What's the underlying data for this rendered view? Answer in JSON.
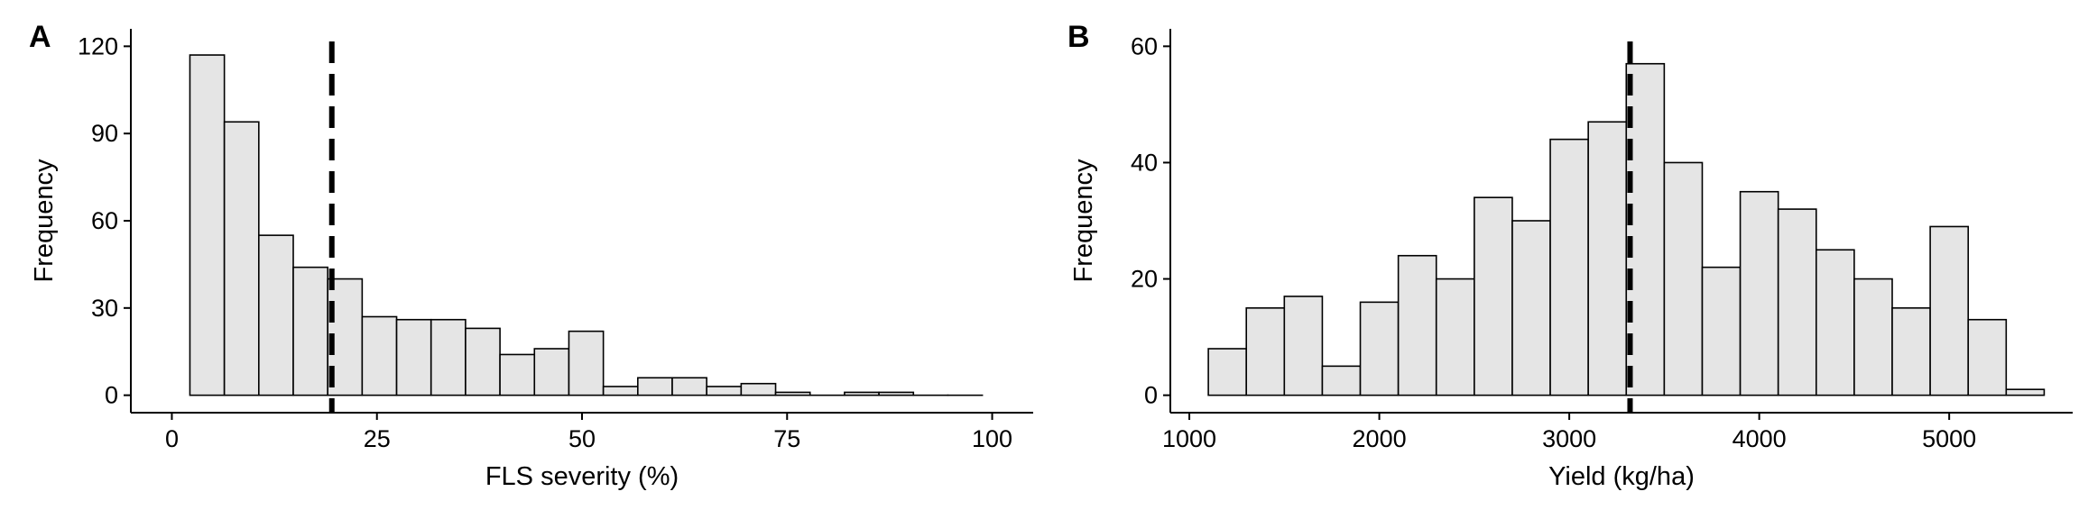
{
  "chart_data": [
    {
      "type": "bar",
      "panel": "A",
      "xlabel": "FLS severity (%)",
      "ylabel": "Frequency",
      "xlim": [
        -5,
        105
      ],
      "ylim": [
        -6,
        126
      ],
      "xticks": [
        0,
        25,
        50,
        75,
        100
      ],
      "xtick_labels": [
        "0",
        "25",
        "50",
        "75",
        "100"
      ],
      "yticks": [
        0,
        30,
        60,
        90,
        120
      ],
      "ytick_labels": [
        "0",
        "30",
        "60",
        "90",
        "120"
      ],
      "bin_edges": [
        2.2,
        6.4,
        10.6,
        14.8,
        19.0,
        23.2,
        27.4,
        31.6,
        35.8,
        40.0,
        44.2,
        48.4,
        52.6,
        56.8,
        61.0,
        65.2,
        69.4,
        73.6,
        77.8,
        82.0,
        86.2,
        90.4,
        94.6,
        98.8
      ],
      "values": [
        117,
        94,
        55,
        44,
        40,
        27,
        26,
        26,
        23,
        14,
        16,
        22,
        3,
        6,
        6,
        3,
        4,
        1,
        0,
        1,
        1,
        0,
        0
      ],
      "reference_line_x": 19.5,
      "bar_fill": "#e5e5e5",
      "grid": false
    },
    {
      "type": "bar",
      "panel": "B",
      "xlabel": "Yield (kg/ha)",
      "ylabel": "Frequency",
      "xlim": [
        900,
        5650
      ],
      "ylim": [
        -3,
        63
      ],
      "xticks": [
        1000,
        2000,
        3000,
        4000,
        5000
      ],
      "xtick_labels": [
        "1000",
        "2000",
        "3000",
        "4000",
        "5000"
      ],
      "yticks": [
        0,
        20,
        40,
        60
      ],
      "ytick_labels": [
        "0",
        "20",
        "40",
        "60"
      ],
      "bin_edges": [
        1100,
        1300,
        1500,
        1700,
        1900,
        2100,
        2300,
        2500,
        2700,
        2900,
        3100,
        3300,
        3500,
        3700,
        3900,
        4100,
        4300,
        4500,
        4700,
        4900,
        5100,
        5300,
        5500
      ],
      "values": [
        8,
        15,
        17,
        5,
        16,
        24,
        20,
        34,
        30,
        44,
        47,
        57,
        40,
        22,
        35,
        32,
        25,
        20,
        15,
        29,
        13,
        1
      ],
      "reference_line_x": 3320,
      "bar_fill": "#e5e5e5",
      "grid": false
    }
  ]
}
